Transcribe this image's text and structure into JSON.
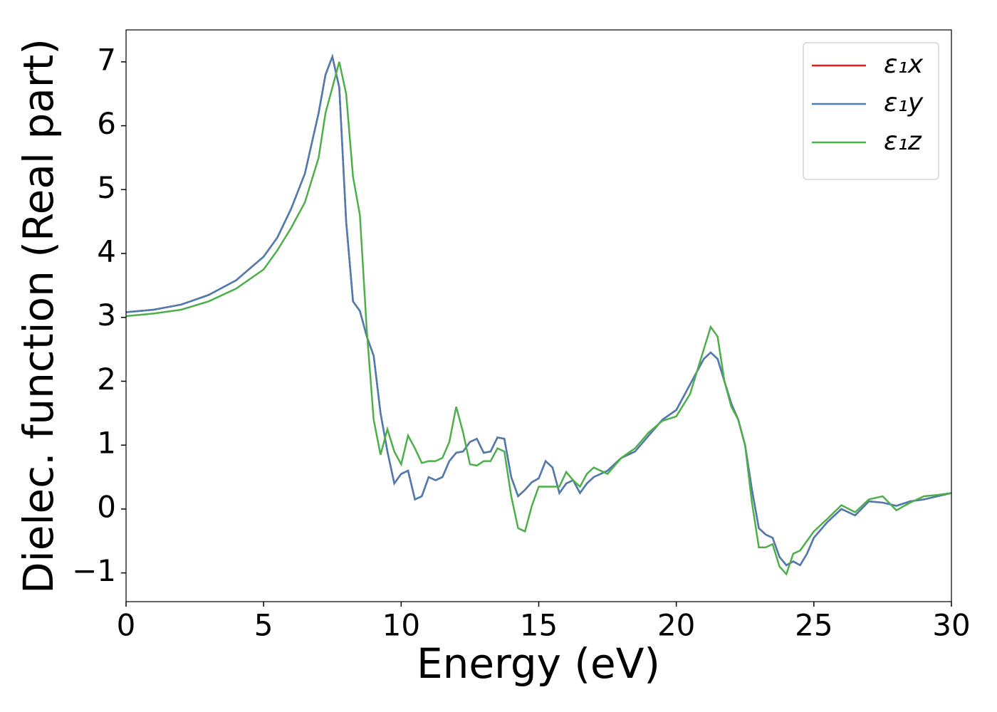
{
  "chart_data": {
    "type": "line",
    "xlabel": "Energy (eV)",
    "ylabel": "Dielec. function (Real part)",
    "x": [
      0,
      1,
      2,
      3,
      4,
      5,
      5.5,
      6,
      6.5,
      7,
      7.25,
      7.5,
      7.75,
      8,
      8.25,
      8.5,
      8.75,
      9,
      9.25,
      9.5,
      9.75,
      10,
      10.25,
      10.5,
      10.75,
      11,
      11.25,
      11.5,
      11.75,
      12,
      12.25,
      12.5,
      12.75,
      13,
      13.25,
      13.5,
      13.75,
      14,
      14.25,
      14.5,
      14.75,
      15,
      15.25,
      15.5,
      15.75,
      16,
      16.25,
      16.5,
      16.75,
      17,
      17.5,
      18,
      18.5,
      19,
      19.5,
      20,
      20.5,
      21,
      21.25,
      21.5,
      21.75,
      22,
      22.25,
      22.5,
      22.75,
      23,
      23.25,
      23.5,
      23.75,
      24,
      24.25,
      24.5,
      24.75,
      25,
      25.5,
      26,
      26.5,
      27,
      27.5,
      28,
      28.5,
      29,
      29.5,
      30
    ],
    "series": [
      {
        "name": "ε₁x",
        "color": "#e41a1c",
        "values": [
          3.08,
          3.12,
          3.2,
          3.35,
          3.58,
          3.95,
          4.25,
          4.7,
          5.25,
          6.2,
          6.8,
          7.08,
          6.6,
          4.5,
          3.25,
          3.1,
          2.7,
          2.4,
          1.5,
          0.9,
          0.4,
          0.55,
          0.6,
          0.15,
          0.2,
          0.5,
          0.45,
          0.5,
          0.75,
          0.88,
          0.9,
          1.05,
          1.1,
          0.88,
          0.9,
          1.12,
          1.1,
          0.5,
          0.2,
          0.3,
          0.42,
          0.48,
          0.75,
          0.65,
          0.25,
          0.4,
          0.45,
          0.25,
          0.4,
          0.5,
          0.6,
          0.8,
          0.9,
          1.15,
          1.4,
          1.55,
          1.95,
          2.35,
          2.45,
          2.35,
          2.0,
          1.65,
          1.4,
          1.0,
          0.3,
          -0.3,
          -0.4,
          -0.45,
          -0.75,
          -0.88,
          -0.82,
          -0.88,
          -0.7,
          -0.45,
          -0.2,
          0.0,
          -0.1,
          0.12,
          0.1,
          0.05,
          0.12,
          0.15,
          0.2,
          0.25
        ]
      },
      {
        "name": "ε₁y",
        "color": "#4a7db3",
        "values": [
          3.08,
          3.12,
          3.2,
          3.35,
          3.58,
          3.95,
          4.25,
          4.7,
          5.25,
          6.2,
          6.8,
          7.08,
          6.6,
          4.5,
          3.25,
          3.1,
          2.7,
          2.4,
          1.5,
          0.9,
          0.4,
          0.55,
          0.6,
          0.15,
          0.2,
          0.5,
          0.45,
          0.5,
          0.75,
          0.88,
          0.9,
          1.05,
          1.1,
          0.88,
          0.9,
          1.12,
          1.1,
          0.5,
          0.2,
          0.3,
          0.42,
          0.48,
          0.75,
          0.65,
          0.25,
          0.4,
          0.45,
          0.25,
          0.4,
          0.5,
          0.6,
          0.8,
          0.9,
          1.15,
          1.4,
          1.55,
          1.95,
          2.35,
          2.45,
          2.35,
          2.0,
          1.65,
          1.4,
          1.0,
          0.3,
          -0.3,
          -0.4,
          -0.45,
          -0.75,
          -0.88,
          -0.82,
          -0.88,
          -0.7,
          -0.45,
          -0.2,
          0.0,
          -0.1,
          0.12,
          0.1,
          0.05,
          0.12,
          0.15,
          0.2,
          0.25
        ]
      },
      {
        "name": "ε₁z",
        "color": "#4daf4a",
        "values": [
          3.02,
          3.06,
          3.12,
          3.25,
          3.45,
          3.75,
          4.05,
          4.4,
          4.8,
          5.5,
          6.2,
          6.6,
          7.0,
          6.5,
          5.2,
          4.6,
          2.8,
          1.4,
          0.85,
          1.25,
          0.9,
          0.7,
          1.15,
          0.95,
          0.72,
          0.75,
          0.75,
          0.8,
          1.05,
          1.6,
          1.2,
          0.7,
          0.68,
          0.75,
          0.75,
          0.95,
          0.9,
          0.2,
          -0.3,
          -0.35,
          0.05,
          0.35,
          0.35,
          0.35,
          0.35,
          0.58,
          0.45,
          0.35,
          0.55,
          0.65,
          0.55,
          0.8,
          0.95,
          1.2,
          1.38,
          1.45,
          1.8,
          2.5,
          2.85,
          2.7,
          2.0,
          1.6,
          1.4,
          1.0,
          0.1,
          -0.6,
          -0.6,
          -0.55,
          -0.9,
          -1.02,
          -0.7,
          -0.65,
          -0.5,
          -0.35,
          -0.15,
          0.06,
          -0.05,
          0.15,
          0.2,
          -0.02,
          0.1,
          0.2,
          0.22,
          0.25
        ]
      }
    ],
    "xlim": [
      0,
      30
    ],
    "xticks": [
      0,
      5,
      10,
      15,
      20,
      25,
      30
    ],
    "ylim": [
      -1.45,
      7.5
    ],
    "yticks": [
      {
        "value": -1,
        "label": "−1"
      },
      0,
      1,
      2,
      3,
      4,
      5,
      6,
      7
    ],
    "grid": false,
    "legend": "upper right"
  }
}
